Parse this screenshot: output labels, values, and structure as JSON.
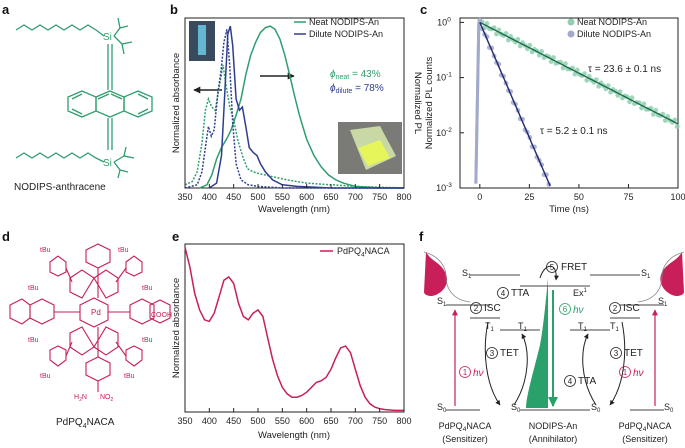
{
  "panels": {
    "a": {
      "label": "a",
      "caption": "NODIPS-anthracene",
      "sub_si": "Si"
    },
    "b": {
      "label": "b"
    },
    "c": {
      "label": "c"
    },
    "d": {
      "label": "d",
      "caption_pre": "PdPQ",
      "caption_sub": "4",
      "caption_post": "NACA",
      "sub_pd": "Pd",
      "sub_tbu": "tBu",
      "sub_cooh": "COOH",
      "sub_nh2": "H",
      "sub_nh2_n": "N",
      "sub_nh2_2": "2",
      "sub_no2": "NO",
      "sub_no2_2": "2"
    },
    "e": {
      "label": "e"
    },
    "f": {
      "label": "f"
    }
  },
  "colors": {
    "teal": "#2f9e6e",
    "navy": "#2f3d8f",
    "crimson": "#c81e5a",
    "green_fill": "#2aa06a",
    "axis": "#222222"
  },
  "chart_data": [
    {
      "id": "b",
      "type": "line",
      "xlabel": "Wavelength (nm)",
      "ylabel_left": "Normalized absorbance",
      "ylabel_right": "Normalized PL",
      "xlim": [
        350,
        800
      ],
      "xticks": [
        350,
        400,
        450,
        500,
        550,
        600,
        650,
        700,
        750,
        800
      ],
      "legend_position": "top-right",
      "series": [
        {
          "name": "Neat NODIPS-An",
          "kind": "PL",
          "style": "solid",
          "color": "#2f9e6e",
          "x": [
            380,
            395,
            405,
            415,
            425,
            435,
            445,
            455,
            465,
            475,
            485,
            495,
            505,
            515,
            525,
            535,
            545,
            555,
            565,
            575,
            585,
            600,
            615,
            630,
            645,
            660,
            675,
            700,
            750,
            800
          ],
          "y": [
            0.0,
            0.02,
            0.08,
            0.18,
            0.25,
            0.3,
            0.36,
            0.45,
            0.55,
            0.7,
            0.82,
            0.9,
            0.96,
            0.99,
            1.0,
            0.98,
            0.92,
            0.82,
            0.7,
            0.57,
            0.45,
            0.3,
            0.2,
            0.13,
            0.08,
            0.05,
            0.03,
            0.01,
            0.0,
            0.0
          ]
        },
        {
          "name": "Neat NODIPS-An",
          "kind": "absorbance",
          "style": "dotted",
          "color": "#2f9e6e",
          "x": [
            350,
            365,
            375,
            385,
            392,
            398,
            405,
            412,
            420,
            428,
            435,
            442,
            450,
            458,
            468,
            478,
            490,
            500,
            515,
            530,
            560,
            600,
            650,
            700,
            800
          ],
          "y": [
            0.02,
            0.04,
            0.1,
            0.28,
            0.48,
            0.55,
            0.5,
            0.48,
            0.62,
            0.76,
            0.62,
            0.5,
            0.42,
            0.3,
            0.2,
            0.12,
            0.1,
            0.09,
            0.08,
            0.07,
            0.05,
            0.03,
            0.02,
            0.01,
            0.0
          ]
        },
        {
          "name": "Dilute NODIPS-An",
          "kind": "PL",
          "style": "solid",
          "color": "#2f3d8f",
          "x": [
            400,
            415,
            425,
            432,
            438,
            443,
            448,
            455,
            462,
            468,
            475,
            482,
            490,
            498,
            505,
            515,
            530,
            550,
            580,
            650,
            800
          ],
          "y": [
            0.0,
            0.03,
            0.2,
            0.6,
            0.95,
            1.0,
            0.88,
            0.55,
            0.48,
            0.5,
            0.38,
            0.25,
            0.22,
            0.2,
            0.15,
            0.1,
            0.05,
            0.02,
            0.01,
            0.0,
            0.0
          ]
        },
        {
          "name": "Dilute NODIPS-An",
          "kind": "absorbance",
          "style": "dotted",
          "color": "#2f3d8f",
          "x": [
            350,
            375,
            385,
            392,
            398,
            404,
            410,
            418,
            424,
            430,
            436,
            442,
            448,
            455,
            465,
            480,
            500,
            550,
            800
          ],
          "y": [
            0.0,
            0.02,
            0.1,
            0.25,
            0.38,
            0.32,
            0.36,
            0.6,
            0.72,
            0.9,
            0.98,
            0.75,
            0.4,
            0.15,
            0.05,
            0.02,
            0.01,
            0.0,
            0.0
          ]
        }
      ],
      "annotations": {
        "phi_neat_sym": "ϕ",
        "phi_neat_sub": "neat",
        "phi_neat_val": " = 43%",
        "phi_dilute_sym": "ϕ",
        "phi_dilute_sub": "dilute",
        "phi_dilute_val": " = 78%"
      }
    },
    {
      "id": "c",
      "type": "scatter",
      "xlabel": "Time (ns)",
      "ylabel": "Normalized PL counts",
      "xlim": [
        -10,
        100
      ],
      "ylim": [
        0.001,
        1.2
      ],
      "yscale": "log",
      "xticks": [
        0,
        25,
        50,
        75,
        100
      ],
      "yticks": [
        1,
        0.1,
        0.01,
        0.001
      ],
      "ytick_base": "10",
      "ytick_exps": [
        "0",
        "-1",
        "-2",
        "-3"
      ],
      "legend_position": "top-right",
      "series": [
        {
          "name": "Neat NODIPS-An",
          "color": "#2f9e6e",
          "tau_ns": 23.6,
          "t_start": 0,
          "t_end": 100
        },
        {
          "name": "Dilute NODIPS-An",
          "color": "#2f3d8f",
          "tau_ns": 5.2,
          "t_start": 0,
          "t_end": 36
        }
      ],
      "annotations": {
        "tau_neat": "τ = 23.6 ± 0.1 ns",
        "tau_dilute": "τ = 5.2 ± 0.1 ns"
      }
    },
    {
      "id": "e",
      "type": "line",
      "xlabel": "Wavelength (nm)",
      "ylabel": "Normalized absorbance",
      "xlim": [
        350,
        800
      ],
      "xticks": [
        350,
        400,
        450,
        500,
        550,
        600,
        650,
        700,
        750,
        800
      ],
      "legend_position": "top-right",
      "series": [
        {
          "name": "PdPQ4NACA",
          "legend_pre": "PdPQ",
          "legend_sub": "4",
          "legend_post": "NACA",
          "color": "#c81e5a",
          "x": [
            350,
            360,
            370,
            380,
            390,
            400,
            410,
            420,
            430,
            440,
            450,
            460,
            470,
            480,
            490,
            500,
            510,
            520,
            530,
            540,
            550,
            560,
            570,
            580,
            590,
            600,
            610,
            620,
            630,
            640,
            650,
            660,
            670,
            680,
            690,
            700,
            710,
            720,
            730,
            740,
            750,
            760,
            780,
            800
          ],
          "y": [
            1.0,
            0.88,
            0.72,
            0.62,
            0.56,
            0.55,
            0.6,
            0.7,
            0.8,
            0.82,
            0.78,
            0.66,
            0.58,
            0.56,
            0.6,
            0.62,
            0.58,
            0.45,
            0.32,
            0.22,
            0.15,
            0.11,
            0.09,
            0.09,
            0.1,
            0.12,
            0.15,
            0.18,
            0.19,
            0.21,
            0.26,
            0.33,
            0.39,
            0.4,
            0.36,
            0.26,
            0.16,
            0.09,
            0.05,
            0.03,
            0.02,
            0.015,
            0.01,
            0.01
          ]
        }
      ]
    }
  ],
  "diagram_f": {
    "s1": "S",
    "s1_sub": "1",
    "t1": "T",
    "t1_sub": "1",
    "s0": "S",
    "s0_sub": "0",
    "ex": "Ex",
    "ex_sup": "1",
    "step1_num": "1",
    "step1_label": "hν",
    "step2_num": "2",
    "step2_label": "ISC",
    "step3_num": "3",
    "step3_label": "TET",
    "step4_num": "4",
    "step4_label": "TTA",
    "step5_num": "5",
    "step5_label": "FRET",
    "step6_num": "6",
    "step6_label": "hν",
    "sensitizer_name": "PdPQ4NACA",
    "sens_pre": "PdPQ",
    "sens_sub": "4",
    "sens_post": "NACA",
    "sensitizer_role": "(Sensitizer)",
    "annihilator_name": "NODIPS-An",
    "annihilator_role": "(Annihilator)"
  }
}
